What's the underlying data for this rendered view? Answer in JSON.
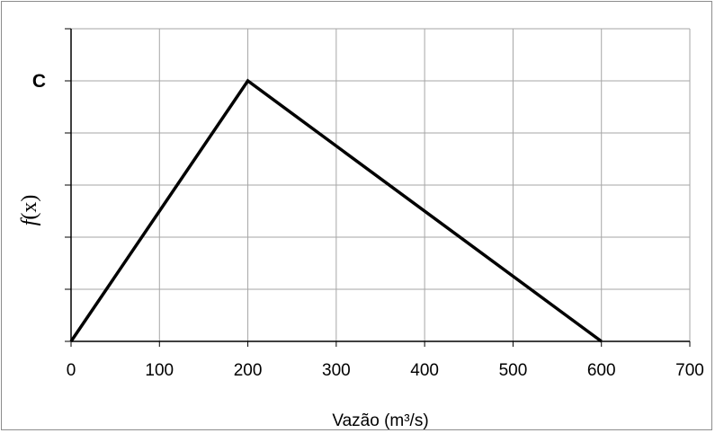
{
  "chart_data": {
    "type": "line",
    "title": "",
    "xlabel": "Vazão (m³/s)",
    "ylabel_func": "f",
    "ylabel_arg": "(x)",
    "xlim": [
      0,
      700
    ],
    "ylim": [
      0,
      1.2
    ],
    "x_ticks": [
      0,
      100,
      200,
      300,
      400,
      500,
      600,
      700
    ],
    "y_ticks": [
      0,
      0.2,
      0.4,
      0.6,
      0.8,
      1.0,
      1.2
    ],
    "y_tick_labels": [
      {
        "value": 1.0,
        "label": "C"
      }
    ],
    "grid": true,
    "legend": "none",
    "series": [
      {
        "x": [
          0,
          200,
          600
        ],
        "y": [
          0,
          1.0,
          0
        ],
        "color": "#000000"
      }
    ]
  }
}
